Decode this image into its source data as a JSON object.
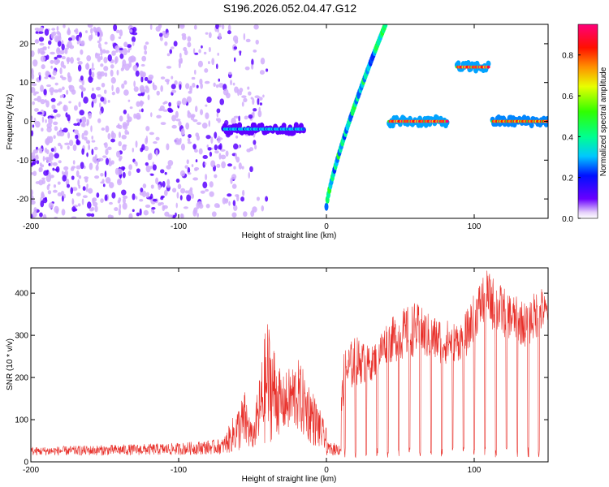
{
  "title": "S196.2026.052.04.47.G12",
  "colors": {
    "scatter_purple": "#7a2be0",
    "scatter_light": "#c9a8f5",
    "snr_line": "#e8302a",
    "axis": "#000000"
  },
  "chart_data": [
    {
      "type": "heatmap",
      "title": "",
      "xlabel": "Height of straight line (km)",
      "ylabel": "Frequency (Hz)",
      "xlim": [
        -200,
        150
      ],
      "ylim": [
        -25,
        25
      ],
      "xticks": [
        -200,
        -100,
        0,
        100
      ],
      "xtick_labels": [
        "-200",
        "-100",
        "0",
        "100"
      ],
      "yticks": [
        -20,
        -10,
        0,
        10,
        20
      ],
      "ytick_labels": [
        "-20",
        "-10",
        "0",
        "10",
        "20"
      ],
      "colorbar": {
        "label": "Normalized spectral amplitude",
        "range": [
          0.0,
          0.95
        ],
        "ticks": [
          0.0,
          0.2,
          0.4,
          0.6,
          0.8
        ],
        "tick_labels": [
          "0.0",
          "0.2",
          "0.4",
          "0.6",
          "0.8"
        ]
      },
      "features": [
        {
          "name": "noise region",
          "x_range": [
            -200,
            -40
          ],
          "freq_range": [
            -25,
            25
          ],
          "amplitude": 0.1
        },
        {
          "name": "band near 0 Hz",
          "x_range": [
            -70,
            -15
          ],
          "freq": -2,
          "amplitude": 0.35
        },
        {
          "name": "steep rising line",
          "x_range": [
            0,
            40
          ],
          "freq_range": [
            -22,
            25
          ],
          "amplitude": 0.5
        },
        {
          "name": "tone at 0 Hz",
          "x_range": [
            42,
            82
          ],
          "freq": 0,
          "amplitude": 0.95
        },
        {
          "name": "tone at 14 Hz",
          "x_range": [
            88,
            110
          ],
          "freq": 14,
          "amplitude": 0.95
        },
        {
          "name": "tone at 0 Hz",
          "x_range": [
            112,
            150
          ],
          "freq": 0,
          "amplitude": 0.9
        }
      ]
    },
    {
      "type": "line",
      "title": "",
      "xlabel": "Height of straight line (km)",
      "ylabel": "SNR (10 * v/v)",
      "xlim": [
        -200,
        150
      ],
      "ylim": [
        0,
        460
      ],
      "xticks": [
        -200,
        -100,
        0,
        100
      ],
      "xtick_labels": [
        "-200",
        "-100",
        "0",
        "100"
      ],
      "yticks": [
        0,
        100,
        200,
        300,
        400
      ],
      "ytick_labels": [
        "0",
        "100",
        "200",
        "300",
        "400"
      ],
      "envelope": {
        "x": [
          -200,
          -150,
          -100,
          -70,
          -55,
          -50,
          -40,
          -30,
          -20,
          -10,
          0,
          8,
          12,
          20,
          30,
          40,
          50,
          60,
          70,
          80,
          90,
          95,
          100,
          108,
          115,
          125,
          135,
          145,
          150
        ],
        "base": [
          15,
          15,
          16,
          18,
          25,
          30,
          40,
          70,
          70,
          40,
          20,
          20,
          150,
          180,
          190,
          230,
          240,
          250,
          240,
          230,
          240,
          250,
          290,
          330,
          300,
          290,
          270,
          300,
          330
        ],
        "peak": [
          35,
          40,
          45,
          55,
          170,
          80,
          350,
          200,
          250,
          180,
          80,
          50,
          270,
          300,
          270,
          330,
          360,
          380,
          350,
          340,
          330,
          360,
          400,
          460,
          430,
          400,
          380,
          420,
          380
        ]
      }
    }
  ]
}
